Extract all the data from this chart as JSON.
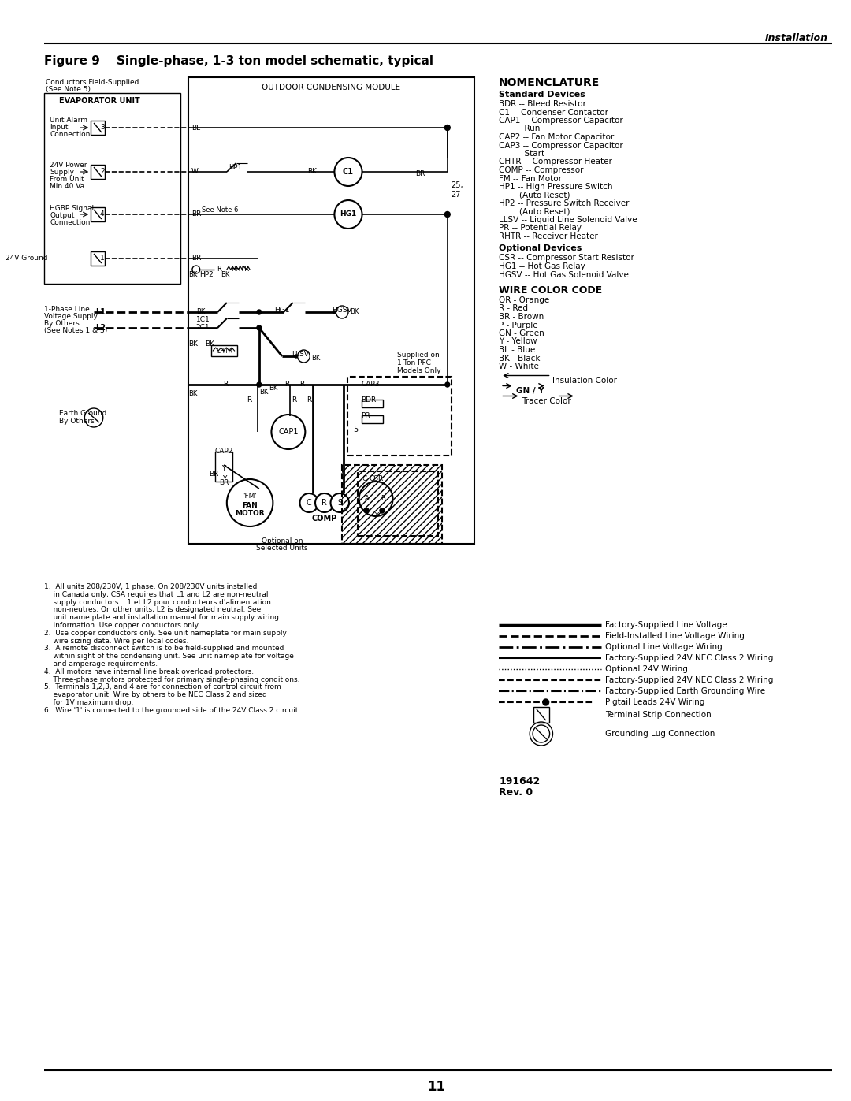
{
  "title": "Figure 9    Single-phase, 1-3 ton model schematic, typical",
  "header_right": "Installation",
  "page_number": "11",
  "background_color": "#ffffff",
  "nomenclature_title": "NOMENCLATURE",
  "standard_devices_title": "Standard Devices",
  "standard_devices": [
    "BDR -- Bleed Resistor",
    "C1 -- Condenser Contactor",
    "CAP1 -- Compressor Capacitor",
    "          Run",
    "CAP2 -- Fan Motor Capacitor",
    "CAP3 -- Compressor Capacitor",
    "          Start",
    "CHTR -- Compressor Heater",
    "COMP -- Compressor",
    "FM -- Fan Motor",
    "HP1 -- High Pressure Switch",
    "        (Auto Reset)",
    "HP2 -- Pressure Switch Receiver",
    "        (Auto Reset)",
    "LLSV -- Liquid Line Solenoid Valve",
    "PR -- Potential Relay",
    "RHTR -- Receiver Heater"
  ],
  "optional_devices_title": "Optional Devices",
  "optional_devices": [
    "CSR -- Compressor Start Resistor",
    "HG1 -- Hot Gas Relay",
    "HGSV -- Hot Gas Solenoid Valve"
  ],
  "wire_color_title": "WIRE COLOR CODE",
  "wire_colors": [
    "OR - Orange",
    "R - Red",
    "BR - Brown",
    "P - Purple",
    "GN - Green",
    "Y - Yellow",
    "BL - Blue",
    "BK - Black",
    "W - White"
  ],
  "notes": [
    "1.  All units 208/230V, 1 phase. On 208/230V units installed",
    "    in Canada only, CSA requires that L1 and L2 are non-neutral",
    "    supply conductors. L1 et L2 pour conducteurs d'alimentation",
    "    non-neutres. On other units, L2 is designated neutral. See",
    "    unit name plate and installation manual for main supply wiring",
    "    information. Use copper conductors only.",
    "2.  Use copper conductors only. See unit nameplate for main supply",
    "    wire sizing data. Wire per local codes.",
    "3.  A remote disconnect switch is to be field-supplied and mounted",
    "    within sight of the condensing unit. See unit nameplate for voltage",
    "    and amperage requirements.",
    "4.  All motors have internal line break overload protectors.",
    "    Three-phase motors protected for primary single-phasing conditions.",
    "5.  Terminals 1,2,3, and 4 are for connection of control circuit from",
    "    evaporator unit. Wire by others to be NEC Class 2 and sized",
    "    for 1V maximum drop.",
    "6.  Wire '1' is connected to the grounded side of the 24V Class 2 circuit."
  ],
  "rev_info": [
    "191642",
    "Rev. 0"
  ]
}
